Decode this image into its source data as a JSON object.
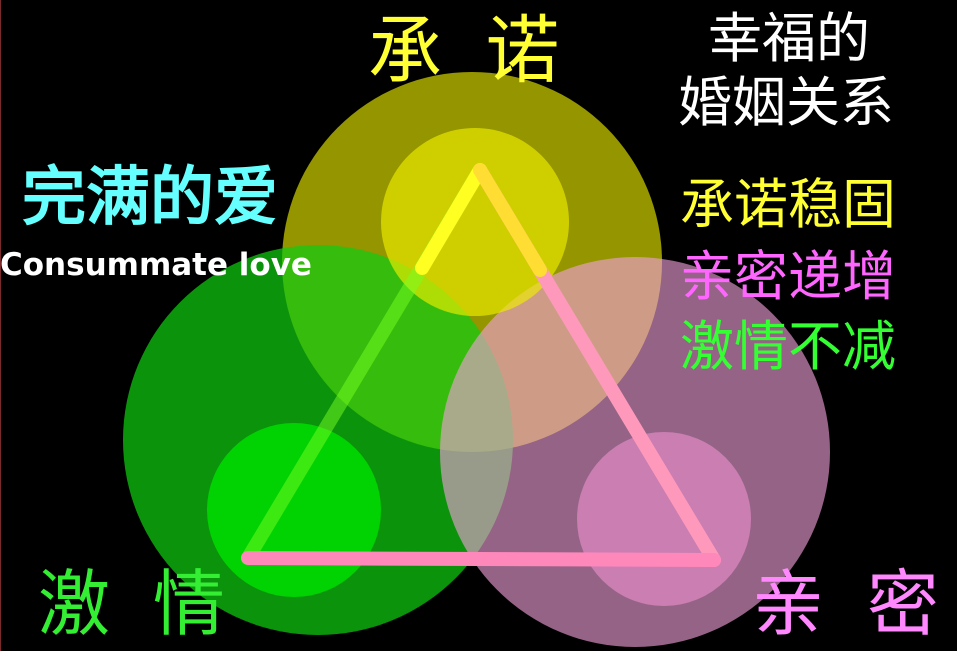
{
  "components": {
    "commitment": "承 诺",
    "passion": "激 情",
    "intimacy": "亲 密"
  },
  "title": {
    "cn": "完满的爱",
    "en": "Consummate love"
  },
  "happy_marriage": {
    "line1": "幸福的",
    "line2": "婚姻关系"
  },
  "points": [
    "承诺稳固",
    "亲密递增",
    "激情不减"
  ],
  "colors": {
    "commitment": "#ffff33",
    "passion": "#33ee33",
    "intimacy": "#ff88ff",
    "title_cn": "#66ffff",
    "background": "#000000"
  }
}
